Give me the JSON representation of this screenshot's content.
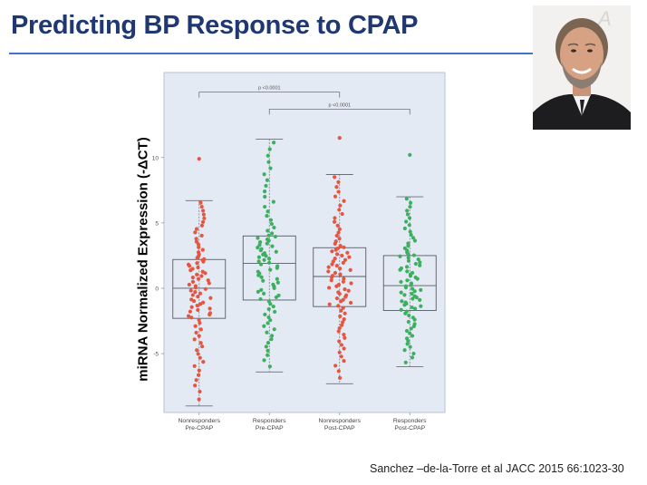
{
  "slide": {
    "title": "Predicting BP Response to CPAP",
    "citation": "Sanchez –de-la-Torre et al JACC 2015 66:1023-30"
  },
  "colors": {
    "title": "#1f3872",
    "rule": "#4472c4",
    "plot_background": "#e4eaf4",
    "nonresponders": "#e55540",
    "responders": "#3cb060"
  },
  "chart_data": {
    "type": "box",
    "ylabel": "miRNA Normalized Expression (-ΔCT)",
    "ylim": [
      -9.5,
      16.5
    ],
    "yticks": [
      10,
      5,
      0,
      -5
    ],
    "yticklabels": [
      "10",
      "5",
      "0",
      "-5"
    ],
    "grid": false,
    "categories": [
      "Nonresponders\nPre-CPAP",
      "Responders\nPre-CPAP",
      "Nonresponders\nPost-CPAP",
      "Responders\nPost-CPAP"
    ],
    "series": [
      {
        "name": "Nonresponders Pre-CPAP",
        "group": "nonresponders",
        "min": -9.0,
        "q1": -2.3,
        "median": 0.0,
        "q3": 2.2,
        "max": 6.7,
        "outliers": [
          9.9
        ]
      },
      {
        "name": "Responders Pre-CPAP",
        "group": "responders",
        "min": -6.4,
        "q1": -0.9,
        "median": 1.9,
        "q3": 4.0,
        "max": 11.4,
        "outliers": []
      },
      {
        "name": "Nonresponders Post-CPAP",
        "group": "nonresponders",
        "min": -7.3,
        "q1": -1.4,
        "median": 0.9,
        "q3": 3.1,
        "max": 8.7,
        "outliers": [
          11.5
        ]
      },
      {
        "name": "Responders Post-CPAP",
        "group": "responders",
        "min": -6.0,
        "q1": -1.7,
        "median": 0.2,
        "q3": 2.5,
        "max": 7.0,
        "outliers": [
          10.2
        ]
      }
    ],
    "annotations": [
      {
        "from": 0,
        "to": 2,
        "text": "p <0.0001",
        "y": 15.0
      },
      {
        "from": 1,
        "to": 3,
        "text": "p <0.0001",
        "y": 13.7
      }
    ]
  }
}
